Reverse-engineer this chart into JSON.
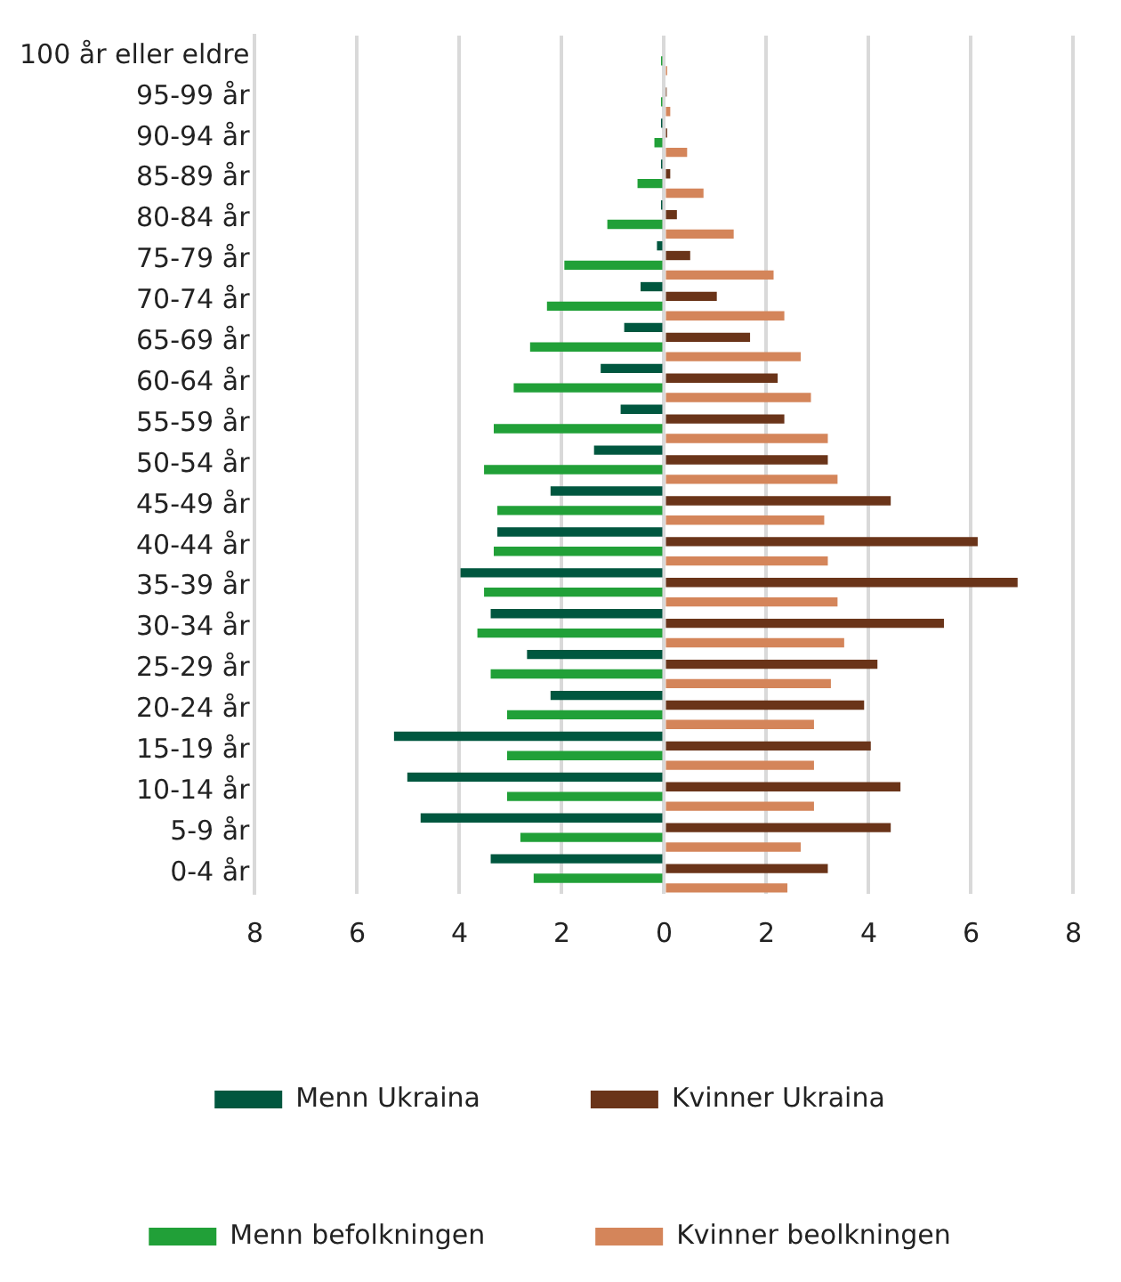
{
  "chart_data": {
    "type": "bar",
    "orientation": "horizontal",
    "categories": [
      "100 år eller eldre",
      "95-99 år",
      "90-94 år",
      "85-89 år",
      "80-84 år",
      "75-79 år",
      "70-74 år",
      "65-69 år",
      "60-64 år",
      "55-59 år",
      "50-54 år",
      "45-49 år",
      "40-44 år",
      "35-39 år",
      "30-34 år",
      "25-29 år",
      "20-24 år",
      "15-19 år",
      "10-14 år",
      "5-9 år",
      "0-4 år"
    ],
    "series": [
      {
        "name": "Menn Ukraina",
        "color": "#00573f",
        "values": [
          0,
          0,
          -0.06,
          -0.06,
          -0.06,
          -0.14,
          -0.46,
          -0.78,
          -1.24,
          -0.85,
          -1.37,
          -2.22,
          -3.26,
          -3.98,
          -3.39,
          -2.68,
          -2.22,
          -5.28,
          -5.02,
          -4.76,
          -3.39
        ]
      },
      {
        "name": "Kvinner Ukraina",
        "color": "#6a3419",
        "values": [
          0,
          0.05,
          0.06,
          0.12,
          0.25,
          0.51,
          1.03,
          1.68,
          2.22,
          2.35,
          3.2,
          4.43,
          6.13,
          6.91,
          5.47,
          4.17,
          3.91,
          4.04,
          4.62,
          4.43,
          3.2
        ]
      },
      {
        "name": "Menn befolkningen",
        "color": "#21a038",
        "values": [
          -0.06,
          -0.06,
          -0.19,
          -0.52,
          -1.11,
          -1.95,
          -2.29,
          -2.62,
          -2.94,
          -3.33,
          -3.52,
          -3.26,
          -3.33,
          -3.52,
          -3.65,
          -3.39,
          -3.07,
          -3.07,
          -3.07,
          -2.81,
          -2.55
        ]
      },
      {
        "name": "Kvinner beolkningen",
        "color": "#d4855a",
        "values": [
          0.06,
          0.12,
          0.45,
          0.77,
          1.36,
          2.14,
          2.35,
          2.67,
          2.87,
          3.2,
          3.39,
          3.13,
          3.2,
          3.39,
          3.52,
          3.26,
          2.93,
          2.93,
          2.93,
          2.67,
          2.41
        ]
      }
    ],
    "xlim": [
      -8,
      8
    ],
    "xticks": [
      {
        "value": -8,
        "label": "8"
      },
      {
        "value": -6,
        "label": "6"
      },
      {
        "value": -4,
        "label": "4"
      },
      {
        "value": -2,
        "label": "2"
      },
      0,
      2,
      4,
      6,
      8
    ],
    "grid": "x",
    "legend": "bottom"
  }
}
